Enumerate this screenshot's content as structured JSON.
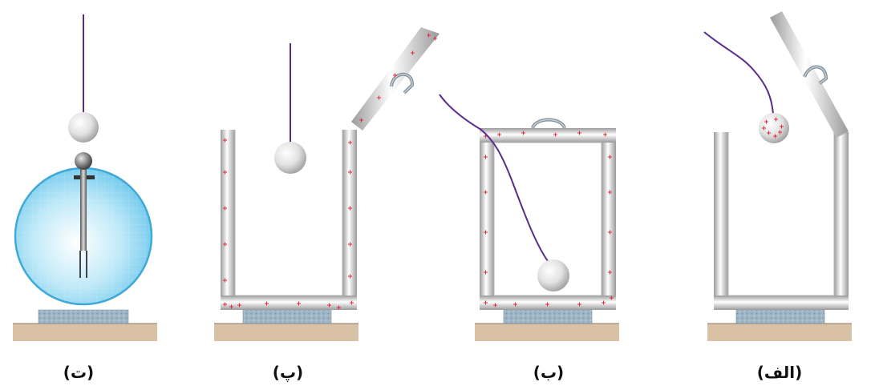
{
  "panels": [
    {
      "key": "alef",
      "label": "(الف)"
    },
    {
      "key": "be",
      "label": "(ب)"
    },
    {
      "key": "pe",
      "label": "(پ)"
    },
    {
      "key": "te",
      "label": "(ت)"
    }
  ],
  "colors": {
    "thread": "#5a2d8c",
    "charge": "#e8283c",
    "table": "#d9c1a6",
    "base": "#9fb6c6",
    "metal": "#c9c9c9",
    "dome": "#8fd6f0"
  }
}
